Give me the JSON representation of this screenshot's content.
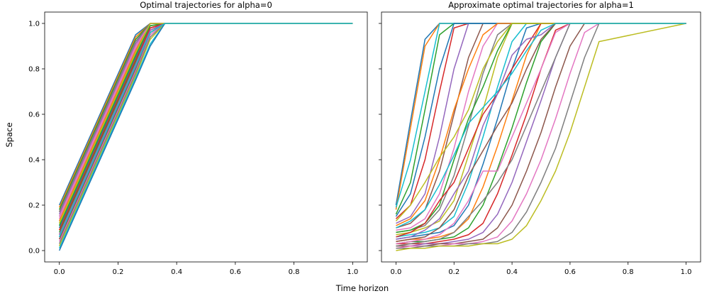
{
  "figure": {
    "xlabel": "Time horizon",
    "ylabel": "Space"
  },
  "colors": [
    "#1f77b4",
    "#ff7f0e",
    "#2ca02c",
    "#d62728",
    "#9467bd",
    "#8c564b",
    "#e377c2",
    "#7f7f7f",
    "#bcbd22",
    "#17becf"
  ],
  "chart_data": [
    {
      "type": "line",
      "title": "Optimal trajectories for alpha=0",
      "xlim": [
        -0.05,
        1.05
      ],
      "ylim": [
        -0.05,
        1.05
      ],
      "xticks": [
        0.0,
        0.2,
        0.4,
        0.6,
        0.8,
        1.0
      ],
      "xtick_labels": [
        "0.0",
        "0.2",
        "0.4",
        "0.6",
        "0.8",
        "1.0"
      ],
      "yticks": [
        0.0,
        0.2,
        0.4,
        0.6,
        0.8,
        1.0
      ],
      "ytick_labels": [
        "0.0",
        "0.2",
        "0.4",
        "0.6",
        "0.8",
        "1.0"
      ],
      "x": [
        0.0,
        0.26,
        0.31,
        0.36,
        1.0
      ],
      "series": [
        {
          "values": [
            0.2,
            0.95,
            1.0,
            1.0,
            1.0
          ]
        },
        {
          "values": [
            0.19,
            0.94,
            1.0,
            1.0,
            1.0
          ]
        },
        {
          "values": [
            0.18,
            0.93,
            1.0,
            1.0,
            1.0
          ]
        },
        {
          "values": [
            0.17,
            0.92,
            1.0,
            1.0,
            1.0
          ]
        },
        {
          "values": [
            0.16,
            0.91,
            1.0,
            1.0,
            1.0
          ]
        },
        {
          "values": [
            0.15,
            0.9,
            1.0,
            1.0,
            1.0
          ]
        },
        {
          "values": [
            0.14,
            0.89,
            1.0,
            1.0,
            1.0
          ]
        },
        {
          "values": [
            0.13,
            0.88,
            1.0,
            1.0,
            1.0
          ]
        },
        {
          "values": [
            0.12,
            0.87,
            0.99,
            1.0,
            1.0
          ]
        },
        {
          "values": [
            0.11,
            0.86,
            0.99,
            1.0,
            1.0
          ]
        },
        {
          "values": [
            0.1,
            0.85,
            0.98,
            1.0,
            1.0
          ]
        },
        {
          "values": [
            0.09,
            0.84,
            0.98,
            1.0,
            1.0
          ]
        },
        {
          "values": [
            0.08,
            0.83,
            0.97,
            1.0,
            1.0
          ]
        },
        {
          "values": [
            0.07,
            0.82,
            0.97,
            1.0,
            1.0
          ]
        },
        {
          "values": [
            0.06,
            0.81,
            0.96,
            1.0,
            1.0
          ]
        },
        {
          "values": [
            0.05,
            0.8,
            0.96,
            1.0,
            1.0
          ]
        },
        {
          "values": [
            0.04,
            0.79,
            0.95,
            1.0,
            1.0
          ]
        },
        {
          "values": [
            0.03,
            0.78,
            0.94,
            1.0,
            1.0
          ]
        },
        {
          "values": [
            0.02,
            0.77,
            0.93,
            1.0,
            1.0
          ]
        },
        {
          "values": [
            0.01,
            0.76,
            0.91,
            1.0,
            1.0
          ]
        },
        {
          "values": [
            0.0,
            0.75,
            0.9,
            1.0,
            1.0
          ]
        },
        {
          "values": [
            0.13,
            0.88,
            1.0,
            1.0,
            1.0
          ]
        },
        {
          "values": [
            0.11,
            0.86,
            0.99,
            1.0,
            1.0
          ]
        },
        {
          "values": [
            0.09,
            0.84,
            0.98,
            1.0,
            1.0
          ]
        },
        {
          "values": [
            0.07,
            0.82,
            0.97,
            1.0,
            1.0
          ]
        },
        {
          "values": [
            0.05,
            0.8,
            0.96,
            1.0,
            1.0
          ]
        },
        {
          "values": [
            0.15,
            0.9,
            1.0,
            1.0,
            1.0
          ]
        },
        {
          "values": [
            0.17,
            0.92,
            1.0,
            1.0,
            1.0
          ]
        },
        {
          "values": [
            0.12,
            0.87,
            1.0,
            1.0,
            1.0
          ]
        },
        {
          "values": [
            0.06,
            0.81,
            0.96,
            1.0,
            1.0
          ]
        }
      ]
    },
    {
      "type": "line",
      "title": "Approximate optimal trajectories for alpha=1",
      "xlim": [
        -0.05,
        1.05
      ],
      "ylim": [
        -0.05,
        1.05
      ],
      "xticks": [
        0.0,
        0.2,
        0.4,
        0.6,
        0.8,
        1.0
      ],
      "xtick_labels": [
        "0.0",
        "0.2",
        "0.4",
        "0.6",
        "0.8",
        "1.0"
      ],
      "yticks": [
        0.0,
        0.2,
        0.4,
        0.6,
        0.8,
        1.0
      ],
      "ytick_labels": [
        "",
        "",
        "",
        "",
        "",
        ""
      ],
      "x": [
        0.0,
        0.05,
        0.1,
        0.15,
        0.2,
        0.25,
        0.3,
        0.35,
        0.4,
        0.45,
        0.5,
        0.55,
        0.6,
        0.65,
        0.7,
        1.0
      ],
      "series": [
        {
          "values": [
            0.2,
            0.57,
            0.93,
            1.0,
            1.0,
            1.0,
            1.0,
            1.0,
            1.0,
            1.0,
            1.0,
            1.0,
            1.0,
            1.0,
            1.0,
            1.0
          ]
        },
        {
          "values": [
            0.18,
            0.54,
            0.9,
            1.0,
            1.0,
            1.0,
            1.0,
            1.0,
            1.0,
            1.0,
            1.0,
            1.0,
            1.0,
            1.0,
            1.0,
            1.0
          ]
        },
        {
          "values": [
            0.16,
            0.3,
            0.62,
            0.95,
            1.0,
            1.0,
            1.0,
            1.0,
            1.0,
            1.0,
            1.0,
            1.0,
            1.0,
            1.0,
            1.0,
            1.0
          ]
        },
        {
          "values": [
            0.14,
            0.2,
            0.4,
            0.7,
            0.98,
            1.0,
            1.0,
            1.0,
            1.0,
            1.0,
            1.0,
            1.0,
            1.0,
            1.0,
            1.0,
            1.0
          ]
        },
        {
          "values": [
            0.12,
            0.15,
            0.25,
            0.5,
            0.8,
            1.0,
            1.0,
            1.0,
            1.0,
            1.0,
            1.0,
            1.0,
            1.0,
            1.0,
            1.0,
            1.0
          ]
        },
        {
          "values": [
            0.1,
            0.12,
            0.18,
            0.35,
            0.6,
            0.85,
            1.0,
            1.0,
            1.0,
            1.0,
            1.0,
            1.0,
            1.0,
            1.0,
            1.0,
            1.0
          ]
        },
        {
          "values": [
            0.09,
            0.1,
            0.14,
            0.25,
            0.45,
            0.7,
            0.9,
            1.0,
            1.0,
            1.0,
            1.0,
            1.0,
            1.0,
            1.0,
            1.0,
            1.0
          ]
        },
        {
          "values": [
            0.08,
            0.09,
            0.11,
            0.18,
            0.33,
            0.55,
            0.78,
            0.95,
            1.0,
            1.0,
            1.0,
            1.0,
            1.0,
            1.0,
            1.0,
            1.0
          ]
        },
        {
          "values": [
            0.07,
            0.08,
            0.1,
            0.13,
            0.22,
            0.42,
            0.62,
            0.85,
            1.0,
            1.0,
            1.0,
            1.0,
            1.0,
            1.0,
            1.0,
            1.0
          ]
        },
        {
          "values": [
            0.06,
            0.07,
            0.08,
            0.1,
            0.15,
            0.3,
            0.5,
            0.72,
            0.92,
            1.0,
            1.0,
            1.0,
            1.0,
            1.0,
            1.0,
            1.0
          ]
        },
        {
          "values": [
            0.05,
            0.06,
            0.07,
            0.08,
            0.11,
            0.2,
            0.38,
            0.58,
            0.8,
            0.98,
            1.0,
            1.0,
            1.0,
            1.0,
            1.0,
            1.0
          ]
        },
        {
          "values": [
            0.04,
            0.05,
            0.05,
            0.06,
            0.08,
            0.14,
            0.28,
            0.46,
            0.66,
            0.86,
            1.0,
            1.0,
            1.0,
            1.0,
            1.0,
            1.0
          ]
        },
        {
          "values": [
            0.03,
            0.04,
            0.04,
            0.05,
            0.06,
            0.1,
            0.2,
            0.36,
            0.54,
            0.74,
            0.92,
            1.0,
            1.0,
            1.0,
            1.0,
            1.0
          ]
        },
        {
          "values": [
            0.03,
            0.03,
            0.03,
            0.04,
            0.05,
            0.07,
            0.12,
            0.25,
            0.42,
            0.6,
            0.8,
            0.97,
            1.0,
            1.0,
            1.0,
            1.0
          ]
        },
        {
          "values": [
            0.02,
            0.02,
            0.03,
            0.03,
            0.04,
            0.05,
            0.08,
            0.16,
            0.3,
            0.48,
            0.66,
            0.85,
            1.0,
            1.0,
            1.0,
            1.0
          ]
        },
        {
          "values": [
            0.02,
            0.02,
            0.02,
            0.03,
            0.03,
            0.04,
            0.05,
            0.1,
            0.2,
            0.35,
            0.52,
            0.72,
            0.9,
            1.0,
            1.0,
            1.0
          ]
        },
        {
          "values": [
            0.01,
            0.02,
            0.02,
            0.02,
            0.03,
            0.03,
            0.04,
            0.06,
            0.13,
            0.25,
            0.4,
            0.58,
            0.78,
            0.96,
            1.0,
            1.0
          ]
        },
        {
          "values": [
            0.01,
            0.01,
            0.02,
            0.02,
            0.02,
            0.03,
            0.03,
            0.04,
            0.08,
            0.17,
            0.3,
            0.45,
            0.65,
            0.85,
            1.0,
            1.0
          ]
        },
        {
          "values": [
            0.0,
            0.01,
            0.01,
            0.02,
            0.02,
            0.02,
            0.03,
            0.03,
            0.05,
            0.11,
            0.22,
            0.35,
            0.52,
            0.72,
            0.92,
            1.0
          ]
        },
        {
          "values": [
            0.19,
            0.4,
            0.7,
            1.0,
            1.0,
            1.0,
            1.0,
            1.0,
            1.0,
            1.0,
            1.0,
            1.0,
            1.0,
            1.0,
            1.0,
            1.0
          ]
        },
        {
          "values": [
            0.15,
            0.25,
            0.5,
            0.8,
            1.0,
            1.0,
            1.0,
            1.0,
            1.0,
            1.0,
            1.0,
            1.0,
            1.0,
            1.0,
            1.0,
            1.0
          ]
        },
        {
          "values": [
            0.11,
            0.14,
            0.22,
            0.4,
            0.62,
            0.8,
            0.95,
            1.0,
            1.0,
            1.0,
            1.0,
            1.0,
            1.0,
            1.0,
            1.0,
            1.0
          ]
        },
        {
          "values": [
            0.08,
            0.09,
            0.12,
            0.2,
            0.4,
            0.58,
            0.72,
            0.88,
            1.0,
            1.0,
            1.0,
            1.0,
            1.0,
            1.0,
            1.0,
            1.0
          ]
        },
        {
          "values": [
            0.06,
            0.08,
            0.12,
            0.22,
            0.3,
            0.45,
            0.6,
            0.69,
            0.8,
            0.9,
            1.0,
            1.0,
            1.0,
            1.0,
            1.0,
            1.0
          ]
        },
        {
          "values": [
            0.05,
            0.06,
            0.09,
            0.14,
            0.25,
            0.35,
            0.55,
            0.69,
            0.86,
            0.93,
            0.95,
            1.0,
            1.0,
            1.0,
            1.0,
            1.0
          ]
        },
        {
          "values": [
            0.04,
            0.05,
            0.06,
            0.1,
            0.18,
            0.33,
            0.44,
            0.55,
            0.65,
            0.8,
            0.93,
            1.0,
            1.0,
            1.0,
            1.0,
            1.0
          ]
        },
        {
          "values": [
            0.03,
            0.04,
            0.05,
            0.07,
            0.12,
            0.22,
            0.35,
            0.35,
            0.5,
            0.65,
            0.8,
            0.96,
            1.0,
            1.0,
            1.0,
            1.0
          ]
        },
        {
          "values": [
            0.02,
            0.03,
            0.04,
            0.05,
            0.08,
            0.15,
            0.22,
            0.3,
            0.4,
            0.55,
            0.7,
            0.85,
            1.0,
            1.0,
            1.0,
            1.0
          ]
        },
        {
          "values": [
            0.13,
            0.2,
            0.3,
            0.41,
            0.5,
            0.62,
            0.8,
            0.92,
            1.0,
            1.0,
            1.0,
            1.0,
            1.0,
            1.0,
            1.0,
            1.0
          ]
        },
        {
          "values": [
            0.1,
            0.13,
            0.18,
            0.29,
            0.42,
            0.56,
            0.63,
            0.7,
            0.78,
            0.88,
            0.97,
            1.0,
            1.0,
            1.0,
            1.0,
            1.0
          ]
        }
      ]
    }
  ]
}
